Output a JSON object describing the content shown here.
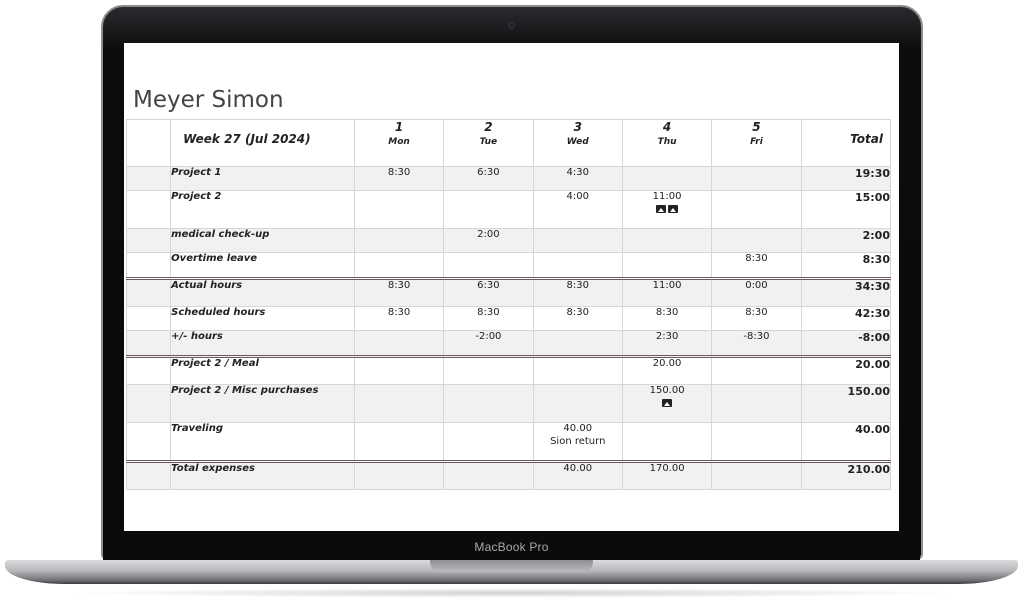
{
  "device": {
    "brand": "MacBook Pro"
  },
  "employee": {
    "name": "Meyer Simon"
  },
  "header": {
    "week": "Week 27 (Jul 2024)",
    "days": [
      {
        "num": "1",
        "name": "Mon"
      },
      {
        "num": "2",
        "name": "Tue"
      },
      {
        "num": "3",
        "name": "Wed"
      },
      {
        "num": "4",
        "name": "Thu"
      },
      {
        "num": "5",
        "name": "Fri"
      }
    ],
    "total_label": "Total"
  },
  "projects": [
    {
      "label": "Project 1",
      "values": [
        "8:30",
        "6:30",
        "4:30",
        "",
        ""
      ],
      "total": "19:30"
    },
    {
      "label": "Project 2",
      "values": [
        "",
        "",
        "4:00",
        "11:00",
        ""
      ],
      "total": "15:00",
      "icons": [
        "image-icon",
        "image-icon"
      ]
    },
    {
      "label": "medical check-up",
      "values": [
        "",
        "2:00",
        "",
        "",
        ""
      ],
      "total": "2:00"
    },
    {
      "label": "Overtime leave",
      "values": [
        "",
        "",
        "",
        "",
        "8:30"
      ],
      "total": "8:30"
    }
  ],
  "summary": [
    {
      "label": "Actual hours",
      "values": [
        "8:30",
        "6:30",
        "8:30",
        "11:00",
        "0:00"
      ],
      "total": "34:30"
    },
    {
      "label": "Scheduled hours",
      "values": [
        "8:30",
        "8:30",
        "8:30",
        "8:30",
        "8:30"
      ],
      "total": "42:30"
    },
    {
      "label": "+/- hours",
      "values": [
        "",
        "-2:00",
        "",
        "2:30",
        "-8:30"
      ],
      "total": "-8:00"
    }
  ],
  "expenses": [
    {
      "label": "Project 2 / Meal",
      "values": [
        "",
        "",
        "",
        "20.00",
        ""
      ],
      "total": "20.00"
    },
    {
      "label": "Project 2 / Misc purchases",
      "values": [
        "",
        "",
        "",
        "150.00",
        ""
      ],
      "total": "150.00"
    },
    {
      "label": "Traveling",
      "values": [
        "",
        "",
        "40.00",
        "",
        ""
      ],
      "note": "Sion return",
      "total": "40.00"
    }
  ],
  "total_expenses": {
    "label": "Total expenses",
    "values": [
      "",
      "",
      "40.00",
      "170.00",
      ""
    ],
    "total": "210.00"
  }
}
